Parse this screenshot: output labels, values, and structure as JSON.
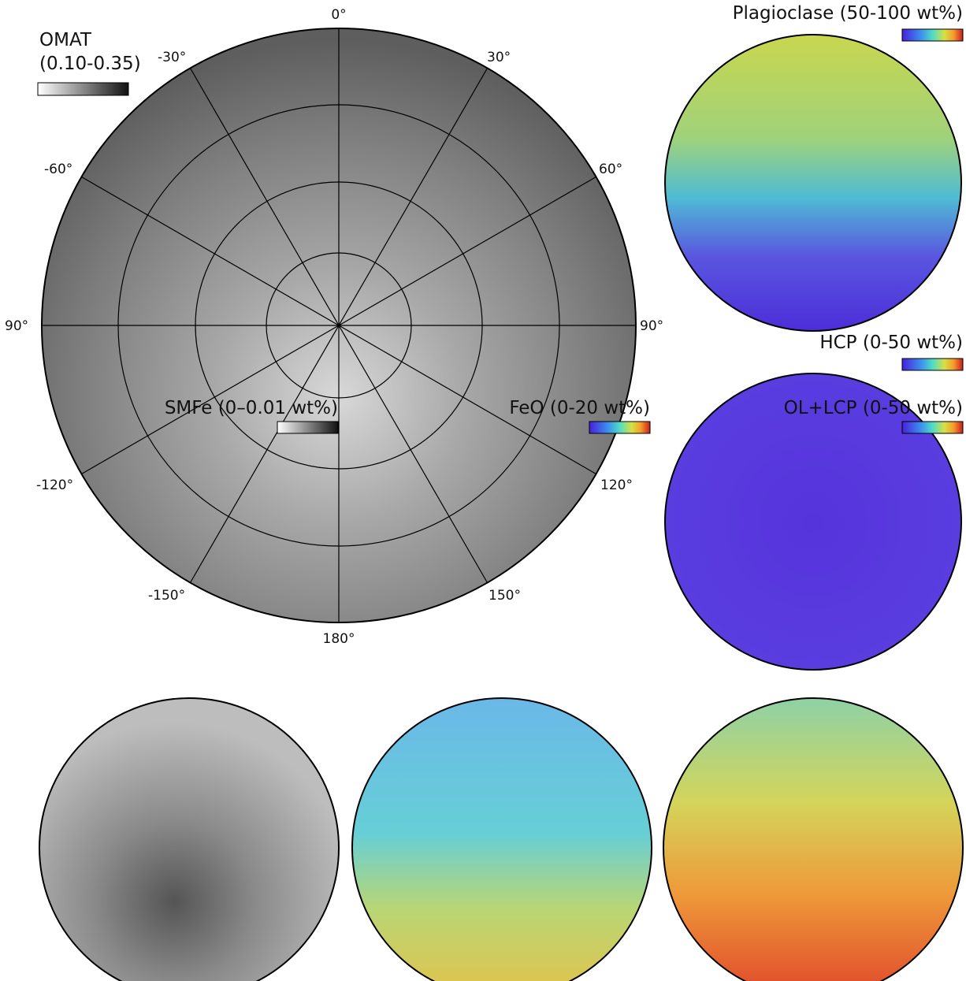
{
  "main_map": {
    "title": "OMAT",
    "range": "(0.10-0.35)",
    "longitude_labels": [
      "0°",
      "30°",
      "60°",
      "90°",
      "120°",
      "150°",
      "180°",
      "-150°",
      "-120°",
      "90°",
      "-60°",
      "-30°"
    ]
  },
  "panels": [
    {
      "title": "Plagioclase (50-100 wt%)"
    },
    {
      "title": "HCP (0-50 wt%)"
    },
    {
      "title": "SMFe (0–0.01 wt%)"
    },
    {
      "title": "FeO (0-20 wt%)"
    },
    {
      "title": "OL+LCP (0-50 wt%)"
    }
  ]
}
